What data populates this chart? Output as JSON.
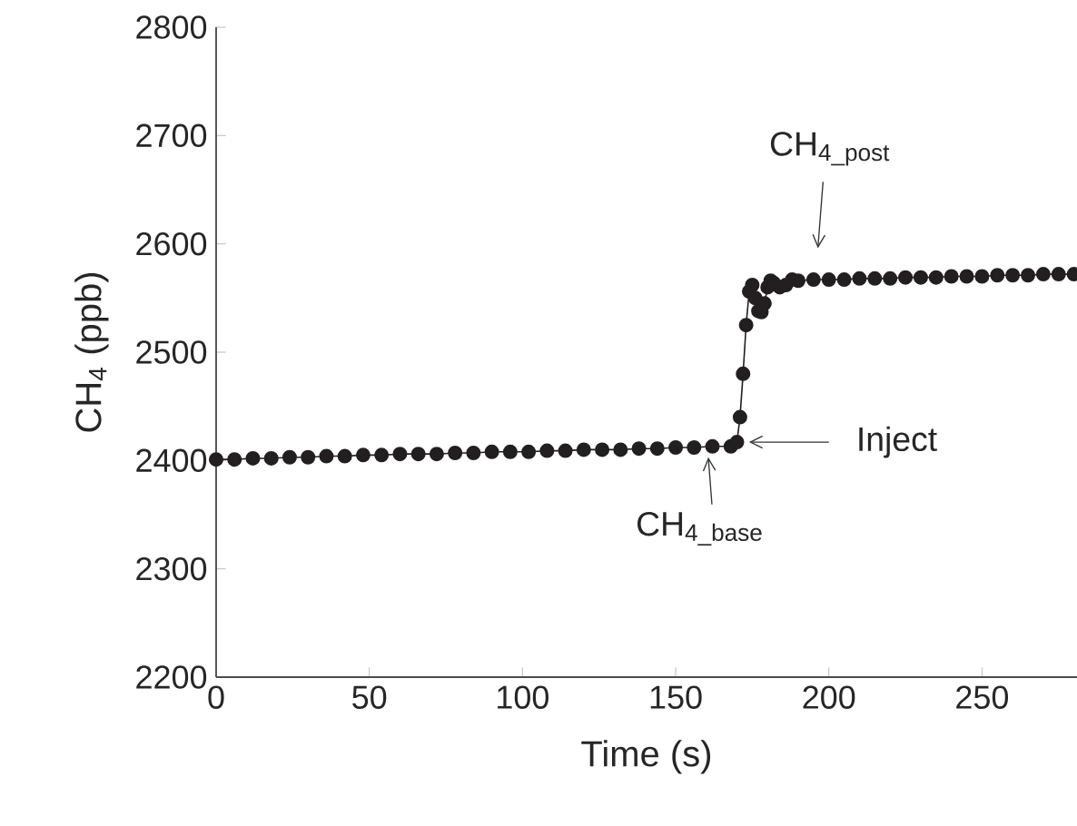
{
  "chart_data": {
    "type": "line",
    "xlabel": "Time (s)",
    "ylabel": "CH$_{4}$ (ppb)",
    "xlim": [
      0,
      281
    ],
    "ylim": [
      2200,
      2800
    ],
    "xticks": [
      0,
      50,
      100,
      150,
      200,
      250
    ],
    "yticks": [
      2200,
      2300,
      2400,
      2500,
      2600,
      2700,
      2800
    ],
    "grid": false,
    "marker": "circle",
    "line_style": "solid",
    "series": [
      {
        "color": "#231f20",
        "x": [
          0,
          6,
          12,
          18,
          24,
          30,
          36,
          42,
          48,
          54,
          60,
          66,
          72,
          78,
          84,
          90,
          96,
          102,
          108,
          114,
          120,
          126,
          132,
          138,
          144,
          150,
          156,
          162,
          168,
          170,
          171,
          172,
          173,
          174,
          175,
          176,
          177,
          178,
          179,
          180,
          181,
          182,
          184,
          186,
          188,
          190,
          195,
          200,
          205,
          210,
          215,
          220,
          225,
          230,
          235,
          240,
          245,
          250,
          255,
          260,
          265,
          270,
          275,
          280
        ],
        "values": [
          2401,
          2401,
          2402,
          2402,
          2403,
          2403,
          2404,
          2404,
          2405,
          2405,
          2406,
          2406,
          2406,
          2407,
          2407,
          2408,
          2408,
          2408,
          2409,
          2409,
          2410,
          2410,
          2410,
          2411,
          2411,
          2412,
          2412,
          2413,
          2413,
          2417,
          2440,
          2480,
          2525,
          2556,
          2562,
          2550,
          2538,
          2537,
          2545,
          2560,
          2566,
          2564,
          2560,
          2562,
          2567,
          2566,
          2567,
          2567,
          2567,
          2568,
          2568,
          2568,
          2569,
          2569,
          2569,
          2570,
          2570,
          2570,
          2571,
          2571,
          2571,
          2572,
          2572,
          2572
        ]
      }
    ],
    "annotations": [
      "CH$_{4_post}$",
      {
        "text": "Inject",
        "x": 170,
        "y": 2417
      },
      {
        "text": "CH$_{4_base}$",
        "x": 165,
        "y": 2413
      }
    ]
  }
}
